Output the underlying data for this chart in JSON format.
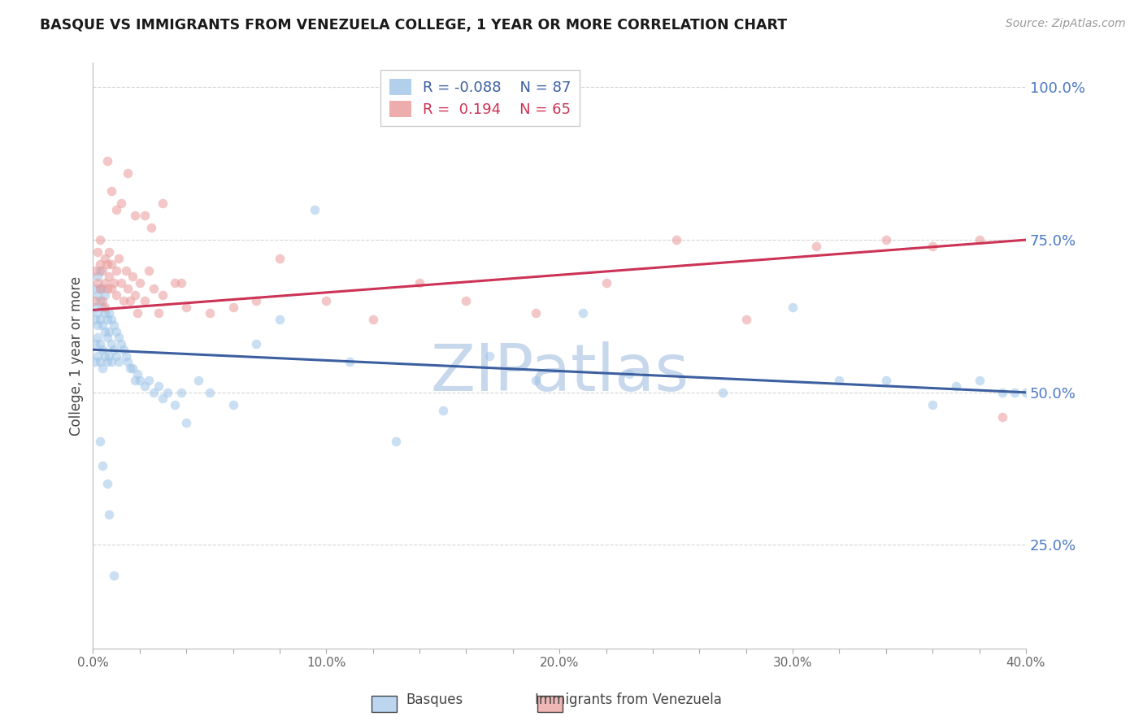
{
  "title": "BASQUE VS IMMIGRANTS FROM VENEZUELA COLLEGE, 1 YEAR OR MORE CORRELATION CHART",
  "source": "Source: ZipAtlas.com",
  "ylabel": "College, 1 year or more",
  "xlim": [
    0.0,
    0.4
  ],
  "ylim": [
    0.08,
    1.04
  ],
  "xtick_labels": [
    "0.0%",
    "",
    "",
    "",
    "",
    "10.0%",
    "",
    "",
    "",
    "",
    "20.0%",
    "",
    "",
    "",
    "",
    "30.0%",
    "",
    "",
    "",
    "",
    "40.0%"
  ],
  "xtick_vals": [
    0.0,
    0.02,
    0.04,
    0.06,
    0.08,
    0.1,
    0.12,
    0.14,
    0.16,
    0.18,
    0.2,
    0.22,
    0.24,
    0.26,
    0.28,
    0.3,
    0.32,
    0.34,
    0.36,
    0.38,
    0.4
  ],
  "ytick_labels": [
    "25.0%",
    "50.0%",
    "75.0%",
    "100.0%"
  ],
  "ytick_vals": [
    0.25,
    0.5,
    0.75,
    1.0
  ],
  "ytick_color": "#4d79c7",
  "legend_r_blue": "R = -0.088",
  "legend_n_blue": "N = 87",
  "legend_r_pink": "R =  0.194",
  "legend_n_pink": "N = 65",
  "blue_color": "#9fc5e8",
  "pink_color": "#ea9999",
  "blue_line_color": "#3c5fa0",
  "pink_line_color": "#cc3355",
  "marker_size": 70,
  "marker_alpha": 0.55,
  "blue_scatter_x": [
    0.001,
    0.001,
    0.001,
    0.001,
    0.001,
    0.002,
    0.002,
    0.002,
    0.002,
    0.002,
    0.002,
    0.003,
    0.003,
    0.003,
    0.003,
    0.003,
    0.003,
    0.004,
    0.004,
    0.004,
    0.004,
    0.004,
    0.005,
    0.005,
    0.005,
    0.005,
    0.006,
    0.006,
    0.006,
    0.007,
    0.007,
    0.007,
    0.008,
    0.008,
    0.008,
    0.009,
    0.009,
    0.01,
    0.01,
    0.011,
    0.011,
    0.012,
    0.013,
    0.014,
    0.015,
    0.016,
    0.017,
    0.018,
    0.019,
    0.02,
    0.022,
    0.024,
    0.026,
    0.028,
    0.03,
    0.032,
    0.035,
    0.038,
    0.04,
    0.045,
    0.05,
    0.06,
    0.07,
    0.08,
    0.095,
    0.11,
    0.13,
    0.15,
    0.17,
    0.19,
    0.21,
    0.23,
    0.27,
    0.3,
    0.32,
    0.34,
    0.36,
    0.37,
    0.38,
    0.39,
    0.395,
    0.4,
    0.003,
    0.004,
    0.006,
    0.007,
    0.009
  ],
  "blue_scatter_y": [
    0.62,
    0.58,
    0.55,
    0.67,
    0.64,
    0.63,
    0.59,
    0.56,
    0.69,
    0.66,
    0.61,
    0.65,
    0.62,
    0.58,
    0.55,
    0.7,
    0.67,
    0.64,
    0.61,
    0.57,
    0.54,
    0.67,
    0.63,
    0.6,
    0.56,
    0.66,
    0.62,
    0.59,
    0.55,
    0.63,
    0.6,
    0.56,
    0.62,
    0.58,
    0.55,
    0.61,
    0.57,
    0.6,
    0.56,
    0.59,
    0.55,
    0.58,
    0.57,
    0.56,
    0.55,
    0.54,
    0.54,
    0.52,
    0.53,
    0.52,
    0.51,
    0.52,
    0.5,
    0.51,
    0.49,
    0.5,
    0.48,
    0.5,
    0.45,
    0.52,
    0.5,
    0.48,
    0.58,
    0.62,
    0.8,
    0.55,
    0.42,
    0.47,
    0.56,
    0.52,
    0.63,
    0.53,
    0.5,
    0.64,
    0.52,
    0.52,
    0.48,
    0.51,
    0.52,
    0.5,
    0.5,
    0.5,
    0.42,
    0.38,
    0.35,
    0.3,
    0.2
  ],
  "pink_scatter_x": [
    0.001,
    0.001,
    0.002,
    0.002,
    0.003,
    0.003,
    0.003,
    0.004,
    0.004,
    0.005,
    0.005,
    0.005,
    0.006,
    0.006,
    0.007,
    0.007,
    0.008,
    0.008,
    0.009,
    0.01,
    0.01,
    0.011,
    0.012,
    0.013,
    0.014,
    0.015,
    0.016,
    0.017,
    0.018,
    0.019,
    0.02,
    0.022,
    0.024,
    0.026,
    0.028,
    0.03,
    0.035,
    0.04,
    0.05,
    0.06,
    0.07,
    0.08,
    0.1,
    0.12,
    0.14,
    0.16,
    0.19,
    0.22,
    0.25,
    0.28,
    0.31,
    0.34,
    0.36,
    0.38,
    0.39,
    0.006,
    0.008,
    0.01,
    0.012,
    0.015,
    0.018,
    0.022,
    0.025,
    0.03,
    0.038
  ],
  "pink_scatter_y": [
    0.65,
    0.7,
    0.68,
    0.73,
    0.67,
    0.71,
    0.75,
    0.7,
    0.65,
    0.72,
    0.68,
    0.64,
    0.71,
    0.67,
    0.73,
    0.69,
    0.71,
    0.67,
    0.68,
    0.7,
    0.66,
    0.72,
    0.68,
    0.65,
    0.7,
    0.67,
    0.65,
    0.69,
    0.66,
    0.63,
    0.68,
    0.65,
    0.7,
    0.67,
    0.63,
    0.66,
    0.68,
    0.64,
    0.63,
    0.64,
    0.65,
    0.72,
    0.65,
    0.62,
    0.68,
    0.65,
    0.63,
    0.68,
    0.75,
    0.62,
    0.74,
    0.75,
    0.74,
    0.75,
    0.46,
    0.88,
    0.83,
    0.8,
    0.81,
    0.86,
    0.79,
    0.79,
    0.77,
    0.81,
    0.68
  ],
  "blue_line_x": [
    0.0,
    0.4
  ],
  "blue_line_y": [
    0.57,
    0.5
  ],
  "pink_line_x": [
    0.0,
    0.4
  ],
  "pink_line_y": [
    0.635,
    0.75
  ],
  "watermark": "ZIPatlas",
  "watermark_color": "#c8d8ec",
  "background_color": "#ffffff",
  "grid_color": "#cccccc",
  "grid_style": "--",
  "grid_alpha": 0.8
}
